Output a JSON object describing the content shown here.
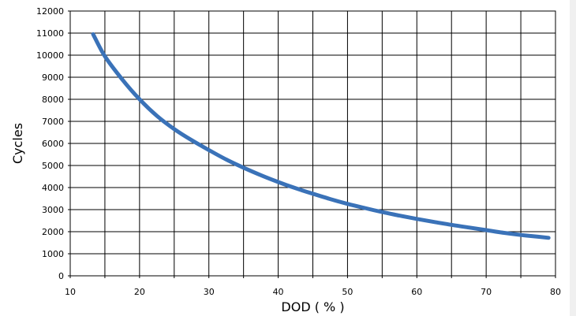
{
  "chart_data": {
    "type": "line",
    "title": "",
    "xlabel": "DOD ( % )",
    "ylabel": "Cycles",
    "xlim": [
      10,
      80
    ],
    "ylim": [
      0,
      12000
    ],
    "x_ticks": [
      10,
      20,
      30,
      40,
      50,
      60,
      70,
      80
    ],
    "y_ticks": [
      0,
      1000,
      2000,
      3000,
      4000,
      5000,
      6000,
      7000,
      8000,
      9000,
      10000,
      11000,
      12000
    ],
    "x_minor_step": 5,
    "grid": true,
    "legend": "none",
    "series": [
      {
        "color": "#3a72b8",
        "x": [
          13.3,
          15,
          17.5,
          20,
          22.5,
          25,
          27.5,
          30,
          32.5,
          35,
          37.5,
          40,
          42.5,
          45,
          47.5,
          50,
          52.5,
          55,
          57.5,
          60,
          62.5,
          65,
          67.5,
          70,
          72.5,
          75,
          77.5,
          79
        ],
        "y": [
          10950,
          9950,
          8900,
          8000,
          7250,
          6650,
          6150,
          5700,
          5270,
          4900,
          4560,
          4250,
          3970,
          3720,
          3480,
          3260,
          3070,
          2890,
          2730,
          2580,
          2440,
          2310,
          2190,
          2070,
          1950,
          1850,
          1770,
          1720
        ]
      }
    ]
  }
}
